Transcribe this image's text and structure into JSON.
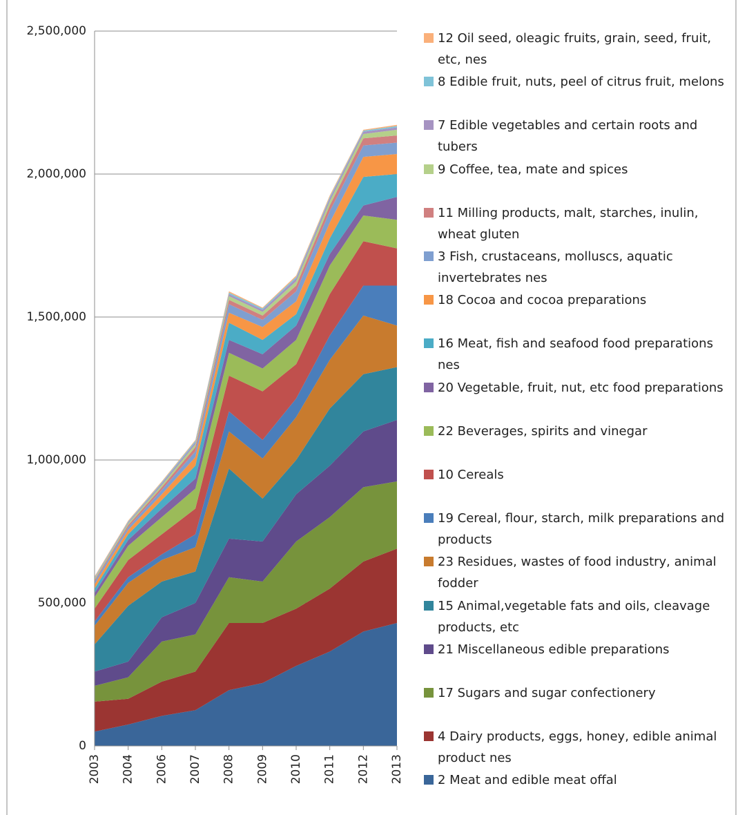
{
  "chart_data": {
    "type": "stacked_area",
    "categories": [
      "2003",
      "2004",
      "2006",
      "2007",
      "2008",
      "2009",
      "2010",
      "2011",
      "2012",
      "2013"
    ],
    "ylim": [
      0,
      2500000
    ],
    "yticks": [
      {
        "value": 0,
        "label": "0"
      },
      {
        "value": 500000,
        "label": "500,000"
      },
      {
        "value": 1000000,
        "label": "1,000,000"
      },
      {
        "value": 1500000,
        "label": "1,500,000"
      },
      {
        "value": 2000000,
        "label": "2,000,000"
      },
      {
        "value": 2500000,
        "label": "2,500,000"
      }
    ],
    "grid": true,
    "legend": "right",
    "series": [
      {
        "name": "2 Meat and edible meat offal",
        "color": "#3a6699",
        "values": [
          50000,
          75000,
          105000,
          125000,
          195000,
          220000,
          280000,
          330000,
          400000,
          430000
        ]
      },
      {
        "name": "4 Dairy products, eggs, honey, edible animal product nes",
        "color": "#9b3532",
        "values": [
          105000,
          90000,
          120000,
          135000,
          235000,
          210000,
          200000,
          220000,
          245000,
          260000
        ]
      },
      {
        "name": "17 Sugars and sugar confectionery",
        "color": "#77933c",
        "values": [
          55000,
          75000,
          140000,
          130000,
          160000,
          145000,
          235000,
          250000,
          260000,
          235000
        ]
      },
      {
        "name": "21 Miscellaneous edible preparations",
        "color": "#5f4b8b",
        "values": [
          50000,
          55000,
          85000,
          110000,
          135000,
          140000,
          165000,
          180000,
          195000,
          215000
        ]
      },
      {
        "name": "15 Animal,vegetable fats and oils, cleavage products, etc",
        "color": "#31859c",
        "values": [
          95000,
          195000,
          125000,
          110000,
          245000,
          150000,
          120000,
          200000,
          200000,
          185000
        ]
      },
      {
        "name": "23 Residues, wastes of food industry, animal fodder",
        "color": "#c87b2e",
        "values": [
          65000,
          80000,
          75000,
          85000,
          130000,
          140000,
          150000,
          170000,
          205000,
          145000
        ]
      },
      {
        "name": "19 Cereal, flour, starch, milk preparations and products",
        "color": "#4a7ebb",
        "values": [
          15000,
          20000,
          20000,
          45000,
          70000,
          65000,
          65000,
          85000,
          105000,
          140000
        ]
      },
      {
        "name": "10 Cereals",
        "color": "#c0504d",
        "values": [
          45000,
          60000,
          70000,
          90000,
          125000,
          170000,
          120000,
          145000,
          155000,
          130000
        ]
      },
      {
        "name": "22 Beverages, spirits and vinegar",
        "color": "#9bbb59",
        "values": [
          40000,
          50000,
          60000,
          70000,
          80000,
          80000,
          85000,
          100000,
          90000,
          100000
        ]
      },
      {
        "name": "20 Vegetable, fruit, nut, etc food preparations",
        "color": "#8064a2",
        "values": [
          15000,
          20000,
          30000,
          35000,
          45000,
          50000,
          50000,
          40000,
          35000,
          80000
        ]
      },
      {
        "name": "16 Meat, fish and seafood food preparations nes",
        "color": "#4bacc6",
        "values": [
          15000,
          20000,
          30000,
          45000,
          60000,
          50000,
          40000,
          55000,
          100000,
          80000
        ]
      },
      {
        "name": "18 Cocoa and cocoa preparations",
        "color": "#f79646",
        "values": [
          15000,
          15000,
          20000,
          30000,
          35000,
          45000,
          45000,
          55000,
          70000,
          70000
        ]
      },
      {
        "name": "3 Fish, crustaceans, molluscs, aquatic invertebrates nes",
        "color": "#7f9fd0",
        "values": [
          10000,
          10000,
          15000,
          20000,
          30000,
          25000,
          35000,
          40000,
          40000,
          40000
        ]
      },
      {
        "name": "11 Milling products, malt, starches, inulin, wheat gluten",
        "color": "#d08080",
        "values": [
          5000,
          7000,
          10000,
          15000,
          15000,
          15000,
          20000,
          20000,
          25000,
          25000
        ]
      },
      {
        "name": "9 Coffee, tea, mate and spices",
        "color": "#b5d08a",
        "values": [
          5000,
          6000,
          7000,
          10000,
          13000,
          13000,
          15000,
          15000,
          15000,
          20000
        ]
      },
      {
        "name": "7 Edible vegetables and certain roots and tubers",
        "color": "#a693c2",
        "values": [
          3000,
          4000,
          6000,
          7000,
          7000,
          7000,
          10000,
          10000,
          8000,
          8000
        ]
      },
      {
        "name": "8 Edible fruit, nuts, peel of citrus fruit, melons",
        "color": "#7fc3d8",
        "values": [
          2000,
          3000,
          4000,
          5000,
          5000,
          5000,
          5000,
          5000,
          4000,
          5000
        ]
      },
      {
        "name": "12 Oil seed, oleagic fruits, grain, seed, fruit, etc, nes",
        "color": "#fab07a",
        "values": [
          3000,
          3000,
          3000,
          3000,
          5000,
          3000,
          5000,
          5000,
          3000,
          4000
        ]
      }
    ]
  }
}
